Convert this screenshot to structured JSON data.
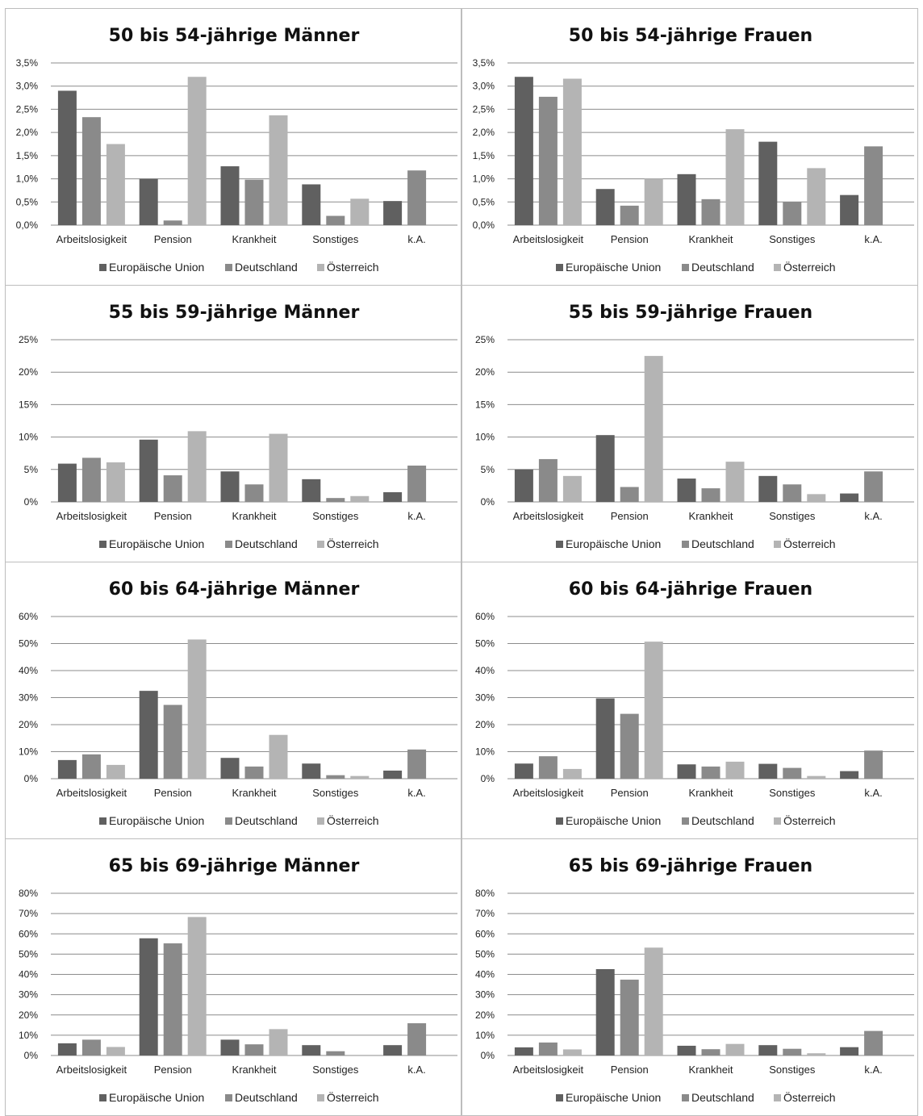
{
  "legend_labels": [
    "Europäische Union",
    "Deutschland",
    "Österreich"
  ],
  "colors": {
    "eu": "#606060",
    "de": "#8a8a8a",
    "at": "#b4b4b4",
    "gridline": "#8c8c8c",
    "border": "#bdbdbd"
  },
  "chart_data": [
    {
      "type": "bar",
      "title": "50 bis 54-jährige Männer",
      "categories": [
        "Arbeitslosigkeit",
        "Pension",
        "Krankheit",
        "Sonstiges",
        "k.A."
      ],
      "yticks": [
        "0,0%",
        "0,5%",
        "1,0%",
        "1,5%",
        "2,0%",
        "2,5%",
        "3,0%",
        "3,5%"
      ],
      "ylim": [
        0,
        3.5
      ],
      "grid": true,
      "legend": "bottom",
      "series": [
        {
          "name": "Europäische Union",
          "values": [
            2.9,
            1.0,
            1.27,
            0.88,
            0.52
          ]
        },
        {
          "name": "Deutschland",
          "values": [
            2.33,
            0.1,
            0.98,
            0.2,
            1.18
          ]
        },
        {
          "name": "Österreich",
          "values": [
            1.75,
            3.2,
            2.37,
            0.57,
            null
          ]
        }
      ]
    },
    {
      "type": "bar",
      "title": "50 bis 54-jährige Frauen",
      "categories": [
        "Arbeitslosigkeit",
        "Pension",
        "Krankheit",
        "Sonstiges",
        "k.A."
      ],
      "yticks": [
        "0,0%",
        "0,5%",
        "1,0%",
        "1,5%",
        "2,0%",
        "2,5%",
        "3,0%",
        "3,5%"
      ],
      "ylim": [
        0,
        3.5
      ],
      "grid": true,
      "legend": "bottom",
      "series": [
        {
          "name": "Europäische Union",
          "values": [
            3.2,
            0.78,
            1.1,
            1.8,
            0.65
          ]
        },
        {
          "name": "Deutschland",
          "values": [
            2.77,
            0.42,
            0.56,
            0.5,
            1.7
          ]
        },
        {
          "name": "Österreich",
          "values": [
            3.16,
            1.0,
            2.07,
            1.23,
            null
          ]
        }
      ]
    },
    {
      "type": "bar",
      "title": "55 bis 59-jährige Männer",
      "categories": [
        "Arbeitslosigkeit",
        "Pension",
        "Krankheit",
        "Sonstiges",
        "k.A."
      ],
      "yticks": [
        "0%",
        "5%",
        "10%",
        "15%",
        "20%",
        "25%"
      ],
      "ylim": [
        0,
        25
      ],
      "grid": true,
      "legend": "bottom",
      "series": [
        {
          "name": "Europäische Union",
          "values": [
            5.9,
            9.6,
            4.7,
            3.5,
            1.5
          ]
        },
        {
          "name": "Deutschland",
          "values": [
            6.8,
            4.1,
            2.7,
            0.6,
            5.6
          ]
        },
        {
          "name": "Österreich",
          "values": [
            6.1,
            10.9,
            10.5,
            0.9,
            null
          ]
        }
      ]
    },
    {
      "type": "bar",
      "title": "55 bis 59-jährige Frauen",
      "categories": [
        "Arbeitslosigkeit",
        "Pension",
        "Krankheit",
        "Sonstiges",
        "k.A."
      ],
      "yticks": [
        "0%",
        "5%",
        "10%",
        "15%",
        "20%",
        "25%"
      ],
      "ylim": [
        0,
        25
      ],
      "grid": true,
      "legend": "bottom",
      "series": [
        {
          "name": "Europäische Union",
          "values": [
            5.0,
            10.3,
            3.6,
            4.0,
            1.3
          ]
        },
        {
          "name": "Deutschland",
          "values": [
            6.6,
            2.3,
            2.1,
            2.7,
            4.7
          ]
        },
        {
          "name": "Österreich",
          "values": [
            4.0,
            22.5,
            6.2,
            1.2,
            null
          ]
        }
      ]
    },
    {
      "type": "bar",
      "title": "60 bis 64-jährige Männer",
      "categories": [
        "Arbeitslosigkeit",
        "Pension",
        "Krankheit",
        "Sonstiges",
        "k.A."
      ],
      "yticks": [
        "0%",
        "10%",
        "20%",
        "30%",
        "40%",
        "50%",
        "60%"
      ],
      "ylim": [
        0,
        60
      ],
      "grid": true,
      "legend": "bottom",
      "series": [
        {
          "name": "Europäische Union",
          "values": [
            6.9,
            32.5,
            7.7,
            5.6,
            3.0
          ]
        },
        {
          "name": "Deutschland",
          "values": [
            9.0,
            27.3,
            4.5,
            1.3,
            10.8
          ]
        },
        {
          "name": "Österreich",
          "values": [
            5.1,
            51.5,
            16.2,
            1.0,
            null
          ]
        }
      ]
    },
    {
      "type": "bar",
      "title": "60 bis 64-jährige Frauen",
      "categories": [
        "Arbeitslosigkeit",
        "Pension",
        "Krankheit",
        "Sonstiges",
        "k.A."
      ],
      "yticks": [
        "0%",
        "10%",
        "20%",
        "30%",
        "40%",
        "50%",
        "60%"
      ],
      "ylim": [
        0,
        60
      ],
      "grid": true,
      "legend": "bottom",
      "series": [
        {
          "name": "Europäische Union",
          "values": [
            5.6,
            29.7,
            5.3,
            5.5,
            2.8
          ]
        },
        {
          "name": "Deutschland",
          "values": [
            8.3,
            24.0,
            4.5,
            4.0,
            10.4
          ]
        },
        {
          "name": "Österreich",
          "values": [
            3.6,
            50.7,
            6.3,
            1.0,
            null
          ]
        }
      ]
    },
    {
      "type": "bar",
      "title": "65 bis 69-jährige Männer",
      "categories": [
        "Arbeitslosigkeit",
        "Pension",
        "Krankheit",
        "Sonstiges",
        "k.A."
      ],
      "yticks": [
        "0%",
        "10%",
        "20%",
        "30%",
        "40%",
        "50%",
        "60%",
        "70%",
        "80%"
      ],
      "ylim": [
        0,
        80
      ],
      "grid": true,
      "legend": "bottom",
      "series": [
        {
          "name": "Europäische Union",
          "values": [
            6.0,
            57.8,
            7.8,
            5.1,
            5.1
          ]
        },
        {
          "name": "Deutschland",
          "values": [
            7.8,
            55.3,
            5.5,
            2.1,
            15.9
          ]
        },
        {
          "name": "Österreich",
          "values": [
            4.2,
            68.3,
            13.0,
            0.3,
            null
          ]
        }
      ]
    },
    {
      "type": "bar",
      "title": "65 bis 69-jährige Frauen",
      "categories": [
        "Arbeitslosigkeit",
        "Pension",
        "Krankheit",
        "Sonstiges",
        "k.A."
      ],
      "yticks": [
        "0%",
        "10%",
        "20%",
        "30%",
        "40%",
        "50%",
        "60%",
        "70%",
        "80%"
      ],
      "ylim": [
        0,
        80
      ],
      "grid": true,
      "legend": "bottom",
      "series": [
        {
          "name": "Europäische Union",
          "values": [
            4.0,
            42.6,
            4.8,
            5.1,
            4.1
          ]
        },
        {
          "name": "Deutschland",
          "values": [
            6.4,
            37.4,
            3.1,
            3.3,
            12.1
          ]
        },
        {
          "name": "Österreich",
          "values": [
            3.0,
            53.2,
            5.7,
            1.1,
            null
          ]
        }
      ]
    }
  ]
}
